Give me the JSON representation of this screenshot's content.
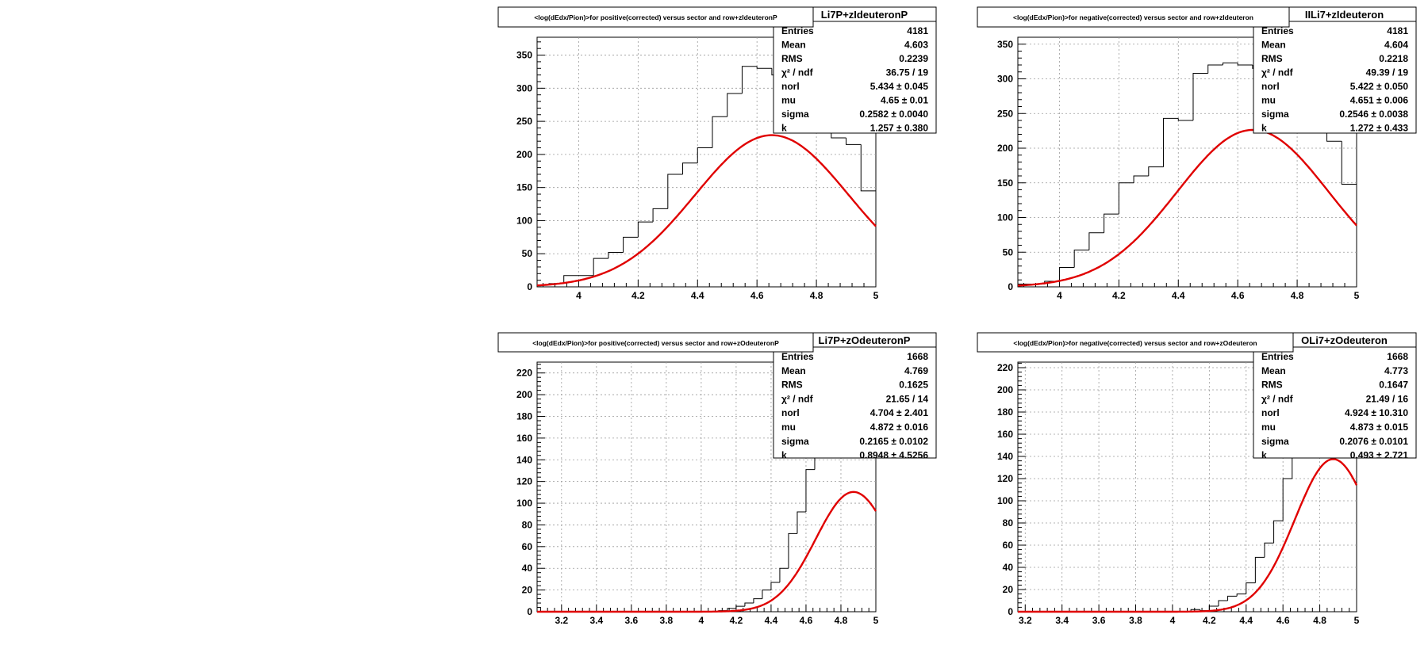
{
  "chart_data": [
    {
      "type": "histogram",
      "title": "<log(dEdx/Pion)>for positive(corrected) versus sector and row+zIdeuteronP",
      "stats_name": "Li7P+zIdeuteronP",
      "xlim": [
        3.86,
        5.0
      ],
      "ylim": [
        0,
        377
      ],
      "xticks": [
        4,
        4.2,
        4.4,
        4.6,
        4.8,
        5
      ],
      "xtick_labels": [
        "4",
        "4.2",
        "4.4",
        "4.6",
        "4.8",
        "5"
      ],
      "yticks": [
        0,
        50,
        100,
        150,
        200,
        250,
        300,
        350
      ],
      "ytick_labels": [
        "0",
        "50",
        "100",
        "150",
        "200",
        "250",
        "300",
        "350"
      ],
      "bin_edges": [
        3.86,
        3.9,
        3.95,
        4.05,
        4.1,
        4.15,
        4.2,
        4.25,
        4.3,
        4.35,
        4.4,
        4.45,
        4.5,
        4.55,
        4.6,
        4.65,
        4.7,
        4.75,
        4.8,
        4.85,
        4.9,
        4.95,
        5.0
      ],
      "counts": [
        3,
        5,
        17,
        43,
        52,
        75,
        98,
        118,
        170,
        187,
        210,
        257,
        292,
        333,
        330,
        320,
        305,
        280,
        255,
        225,
        215,
        145
      ],
      "fit": {
        "norm": 5.434,
        "mu": 4.65,
        "sigma": 0.2582,
        "k": 1.257
      },
      "stats": [
        {
          "label": "Entries",
          "value": "4181"
        },
        {
          "label": "Mean",
          "value": "4.603"
        },
        {
          "label": "RMS",
          "value": "0.2239"
        },
        {
          "label": "χ² / ndf",
          "value": "36.75 / 19"
        },
        {
          "label": "norl",
          "value": "5.434 ± 0.045"
        },
        {
          "label": "mu",
          "value": "4.65 ± 0.01"
        },
        {
          "label": "sigma",
          "value": "0.2582 ± 0.0040"
        },
        {
          "label": "k",
          "value": "1.257 ± 0.380"
        }
      ]
    },
    {
      "type": "histogram",
      "title": "<log(dEdx/Pion)>for negative(corrected) versus sector and row+zIdeuteron",
      "stats_name": "IILi7+zIdeuteron",
      "xlim": [
        3.86,
        5.0
      ],
      "ylim": [
        0,
        360
      ],
      "xticks": [
        4,
        4.2,
        4.4,
        4.6,
        4.8,
        5
      ],
      "xtick_labels": [
        "4",
        "4.2",
        "4.4",
        "4.6",
        "4.8",
        "5"
      ],
      "yticks": [
        0,
        50,
        100,
        150,
        200,
        250,
        300,
        350
      ],
      "ytick_labels": [
        "0",
        "50",
        "100",
        "150",
        "200",
        "250",
        "300",
        "350"
      ],
      "bin_edges": [
        3.86,
        3.95,
        4.0,
        4.05,
        4.1,
        4.15,
        4.2,
        4.25,
        4.3,
        4.35,
        4.4,
        4.45,
        4.5,
        4.55,
        4.6,
        4.65,
        4.7,
        4.75,
        4.8,
        4.85,
        4.9,
        4.95,
        5.0
      ],
      "counts": [
        4,
        8,
        28,
        53,
        78,
        105,
        150,
        160,
        173,
        243,
        240,
        308,
        320,
        323,
        320,
        315,
        300,
        280,
        260,
        240,
        210,
        148
      ],
      "fit": {
        "norm": 5.422,
        "mu": 4.651,
        "sigma": 0.2546,
        "k": 1.272
      },
      "stats": [
        {
          "label": "Entries",
          "value": "4181"
        },
        {
          "label": "Mean",
          "value": "4.604"
        },
        {
          "label": "RMS",
          "value": "0.2218"
        },
        {
          "label": "χ² / ndf",
          "value": "49.39 / 19"
        },
        {
          "label": "norl",
          "value": "5.422 ± 0.050"
        },
        {
          "label": "mu",
          "value": "4.651 ± 0.006"
        },
        {
          "label": "sigma",
          "value": "0.2546 ± 0.0038"
        },
        {
          "label": "k",
          "value": "1.272 ± 0.433"
        }
      ]
    },
    {
      "type": "histogram",
      "title": "<log(dEdx/Pion)>for positive(corrected) versus sector and row+zOdeuteronP",
      "stats_name": "Li7P+zOdeuteronP",
      "xlim": [
        3.06,
        5.0
      ],
      "ylim": [
        0,
        230
      ],
      "xticks": [
        3.2,
        3.4,
        3.6,
        3.8,
        4,
        4.2,
        4.4,
        4.6,
        4.8,
        5
      ],
      "xtick_labels": [
        "3.2",
        "3.4",
        "3.6",
        "3.8",
        "4",
        "4.2",
        "4.4",
        "4.6",
        "4.8",
        "5"
      ],
      "yticks": [
        0,
        20,
        40,
        60,
        80,
        100,
        120,
        140,
        160,
        180,
        200,
        220
      ],
      "ytick_labels": [
        "0",
        "20",
        "40",
        "60",
        "80",
        "100",
        "120",
        "140",
        "160",
        "180",
        "200",
        "220"
      ],
      "bin_edges": [
        3.06,
        4.1,
        4.15,
        4.2,
        4.25,
        4.3,
        4.35,
        4.4,
        4.45,
        4.5,
        4.55,
        4.6,
        4.65,
        4.7,
        4.75,
        4.8
      ],
      "counts": [
        0,
        1,
        3,
        5,
        8,
        12,
        20,
        27,
        40,
        72,
        92,
        131,
        150,
        170,
        190
      ],
      "fit": {
        "norm": 4.704,
        "mu": 4.872,
        "sigma": 0.2165,
        "k": 0.8948
      },
      "stats": [
        {
          "label": "Entries",
          "value": "1668"
        },
        {
          "label": "Mean",
          "value": "4.769"
        },
        {
          "label": "RMS",
          "value": "0.1625"
        },
        {
          "label": "χ² / ndf",
          "value": "21.65 / 14"
        },
        {
          "label": "norl",
          "value": "4.704 ± 2.401"
        },
        {
          "label": "mu",
          "value": "4.872 ± 0.016"
        },
        {
          "label": "sigma",
          "value": "0.2165 ± 0.0102"
        },
        {
          "label": "k",
          "value": "0.8948 ± 4.5256"
        }
      ]
    },
    {
      "type": "histogram",
      "title": "<log(dEdx/Pion)>for negative(corrected) versus sector and row+zOdeuteron",
      "stats_name": "OLi7+zOdeuteron",
      "xlim": [
        3.16,
        5.0
      ],
      "ylim": [
        0,
        225
      ],
      "xticks": [
        3.2,
        3.4,
        3.6,
        3.8,
        4,
        4.2,
        4.4,
        4.6,
        4.8,
        5
      ],
      "xtick_labels": [
        "3.2",
        "3.4",
        "3.6",
        "3.8",
        "4",
        "4.2",
        "4.4",
        "4.6",
        "4.8",
        "5"
      ],
      "yticks": [
        0,
        20,
        40,
        60,
        80,
        100,
        120,
        140,
        160,
        180,
        200,
        220
      ],
      "ytick_labels": [
        "0",
        "20",
        "40",
        "60",
        "80",
        "100",
        "120",
        "140",
        "160",
        "180",
        "200",
        "220"
      ],
      "bin_edges": [
        3.16,
        4.1,
        4.15,
        4.2,
        4.25,
        4.3,
        4.35,
        4.4,
        4.45,
        4.5,
        4.55,
        4.6,
        4.65,
        4.7,
        4.75
      ],
      "counts": [
        0,
        2,
        1,
        5,
        10,
        14,
        16,
        26,
        49,
        62,
        82,
        120,
        150,
        170
      ],
      "fit": {
        "norm": 4.924,
        "mu": 4.873,
        "sigma": 0.2076,
        "k": 0.493
      },
      "stats": [
        {
          "label": "Entries",
          "value": "1668"
        },
        {
          "label": "Mean",
          "value": "4.773"
        },
        {
          "label": "RMS",
          "value": "0.1647"
        },
        {
          "label": "χ² / ndf",
          "value": "21.49 / 16"
        },
        {
          "label": "norl",
          "value": "4.924 ± 10.310"
        },
        {
          "label": "mu",
          "value": "4.873 ± 0.015"
        },
        {
          "label": "sigma",
          "value": "0.2076 ± 0.0101"
        },
        {
          "label": "k",
          "value": "0.493 ± 2.721"
        }
      ]
    }
  ],
  "colors": {
    "fit": "#e00000",
    "hist": "#000000",
    "grid": "#9a9a9a"
  }
}
